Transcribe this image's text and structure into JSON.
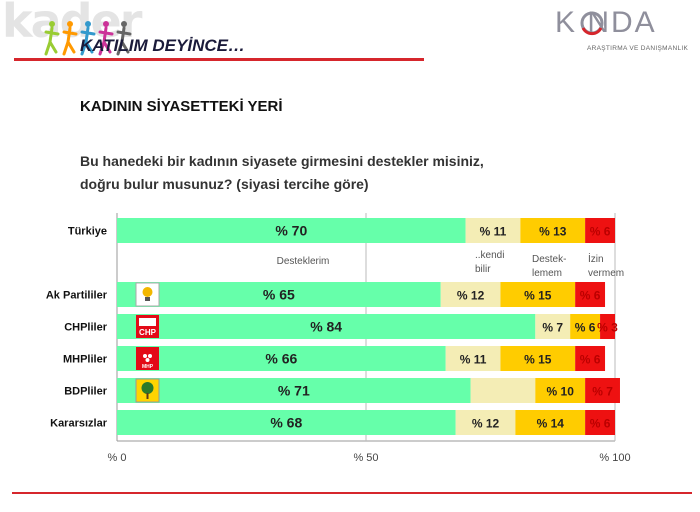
{
  "header": {
    "title": "KATILIM DEYİNCE…",
    "logo_text": "kader"
  },
  "brand": {
    "name": "K  NDA",
    "tagline": "ARAŞTIRMA VE DANIŞMANLIK"
  },
  "section_title": "KADININ SİYASETTEKİ YERİ",
  "question": {
    "line1": "Bu hanedeki bir kadının siyasete girmesini destekler misiniz,",
    "line2": "doğru bulur musunuz? (siyasi tercihe göre)"
  },
  "chart_data": {
    "type": "bar",
    "orientation": "horizontal",
    "stacked": true,
    "categories": [
      "Türkiye",
      "Ak Partililer",
      "CHPliler",
      "MHPliler",
      "BDPliler",
      "Kararsızlar"
    ],
    "series": [
      {
        "name": "Desteklerim",
        "color": "#66ffaa",
        "values": [
          70,
          65,
          84,
          66,
          71,
          68
        ]
      },
      {
        "name": "..kendi bilir",
        "color": "#f4edb5",
        "values": [
          11,
          12,
          7,
          11,
          13,
          12
        ]
      },
      {
        "name": "Destek-lemem",
        "color": "#ffcc00",
        "values": [
          13,
          15,
          6,
          15,
          10,
          14
        ]
      },
      {
        "name": "İzin vermem",
        "color": "#ee1111",
        "values": [
          6,
          6,
          3,
          6,
          7,
          6
        ]
      }
    ],
    "data_labels": [
      [
        "% 70",
        "% 11",
        "% 13",
        "% 6"
      ],
      [
        "% 65",
        "% 12",
        "% 15",
        "% 6"
      ],
      [
        "% 84",
        "% 7",
        "% 6",
        "% 3"
      ],
      [
        "% 66",
        "% 11",
        "% 15",
        "% 6"
      ],
      [
        "% 71",
        "",
        "% 10",
        "% 7"
      ],
      [
        "% 68",
        "% 12",
        "% 14",
        "% 6"
      ]
    ],
    "series_labels": [
      "Desteklerim",
      "..kendi\nbilir",
      "Destek-\nlemem",
      "İzin\nvermem"
    ],
    "party_logos": [
      "",
      "ak-parti-logo",
      "chp-logo",
      "mhp-logo",
      "bdp-logo",
      ""
    ],
    "xlim": [
      0,
      100
    ],
    "x_ticks": [
      "% 0",
      "% 50",
      "% 100"
    ],
    "grid": true
  }
}
